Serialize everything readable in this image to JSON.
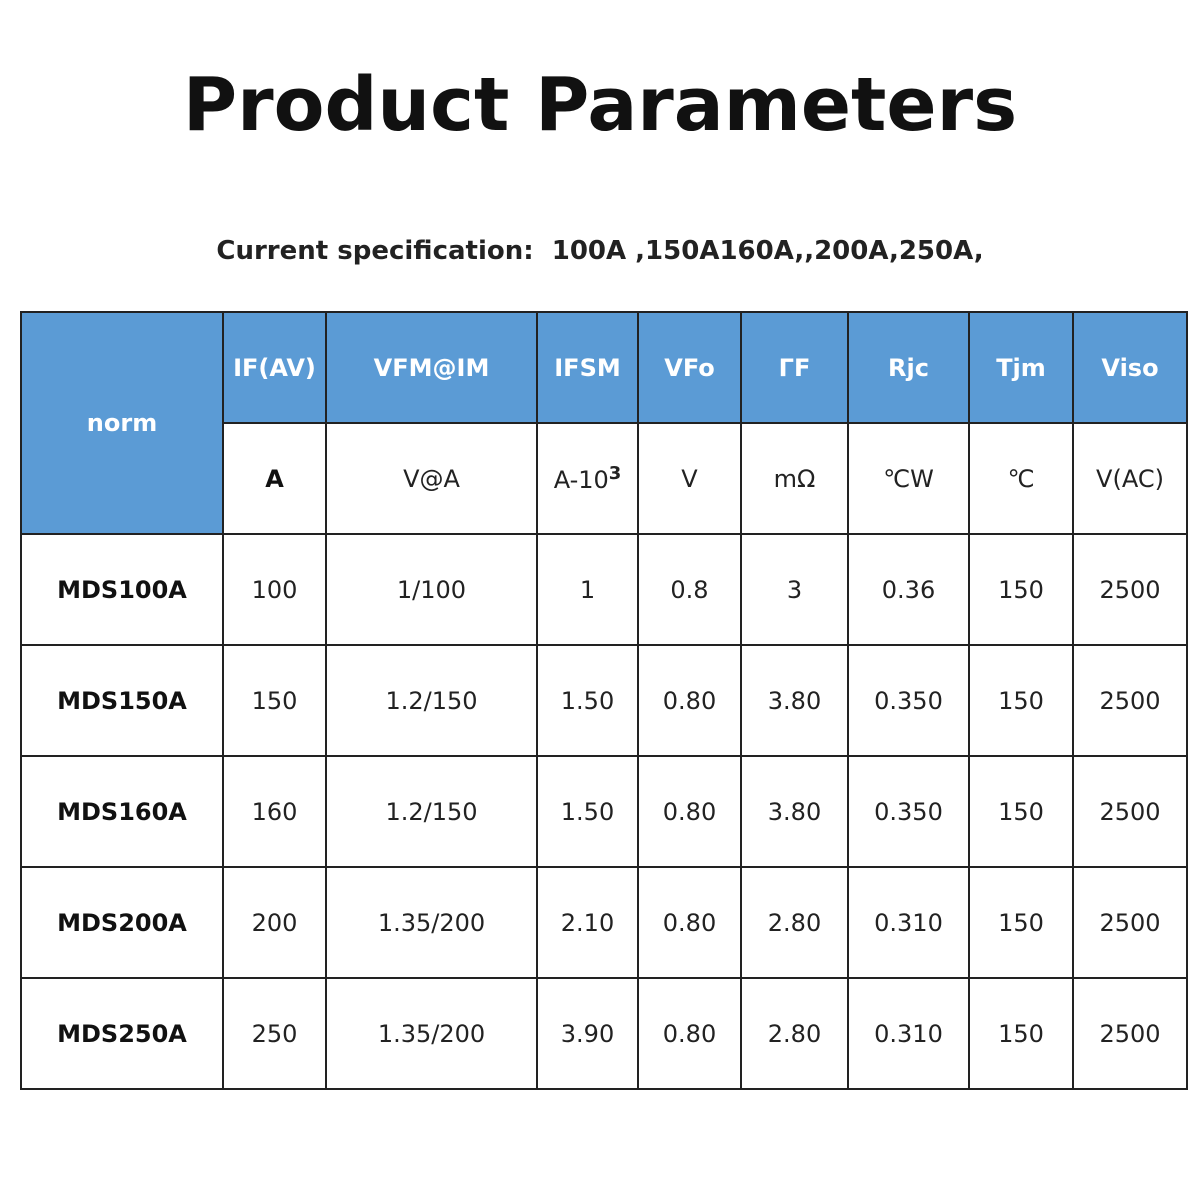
{
  "header": {
    "title": "Product Parameters",
    "subtitle": "Current specification:  100A ,150A160A,,200A,250A,"
  },
  "table": {
    "corner": "norm",
    "params": [
      "IF(AV)",
      "VFM@IM",
      "IFSM",
      "VFo",
      "ΓF",
      "Rjc",
      "Tjm",
      "Viso"
    ],
    "units": [
      "A",
      "V@A",
      {
        "text": "A-10",
        "sup": "3"
      },
      "V",
      "mΩ",
      "℃W",
      "℃",
      "V(AC)"
    ],
    "rows": [
      [
        "MDS100A",
        "100",
        "1/100",
        "1",
        "0.8",
        "3",
        "0.36",
        "150",
        "2500"
      ],
      [
        "MDS150A",
        "150",
        "1.2/150",
        "1.50",
        "0.80",
        "3.80",
        "0.350",
        "150",
        "2500"
      ],
      [
        "MDS160A",
        "160",
        "1.2/150",
        "1.50",
        "0.80",
        "3.80",
        "0.350",
        "150",
        "2500"
      ],
      [
        "MDS200A",
        "200",
        "1.35/200",
        "2.10",
        "0.80",
        "2.80",
        "0.310",
        "150",
        "2500"
      ],
      [
        "MDS250A",
        "250",
        "1.35/200",
        "3.90",
        "0.80",
        "2.80",
        "0.310",
        "150",
        "2500"
      ]
    ]
  }
}
